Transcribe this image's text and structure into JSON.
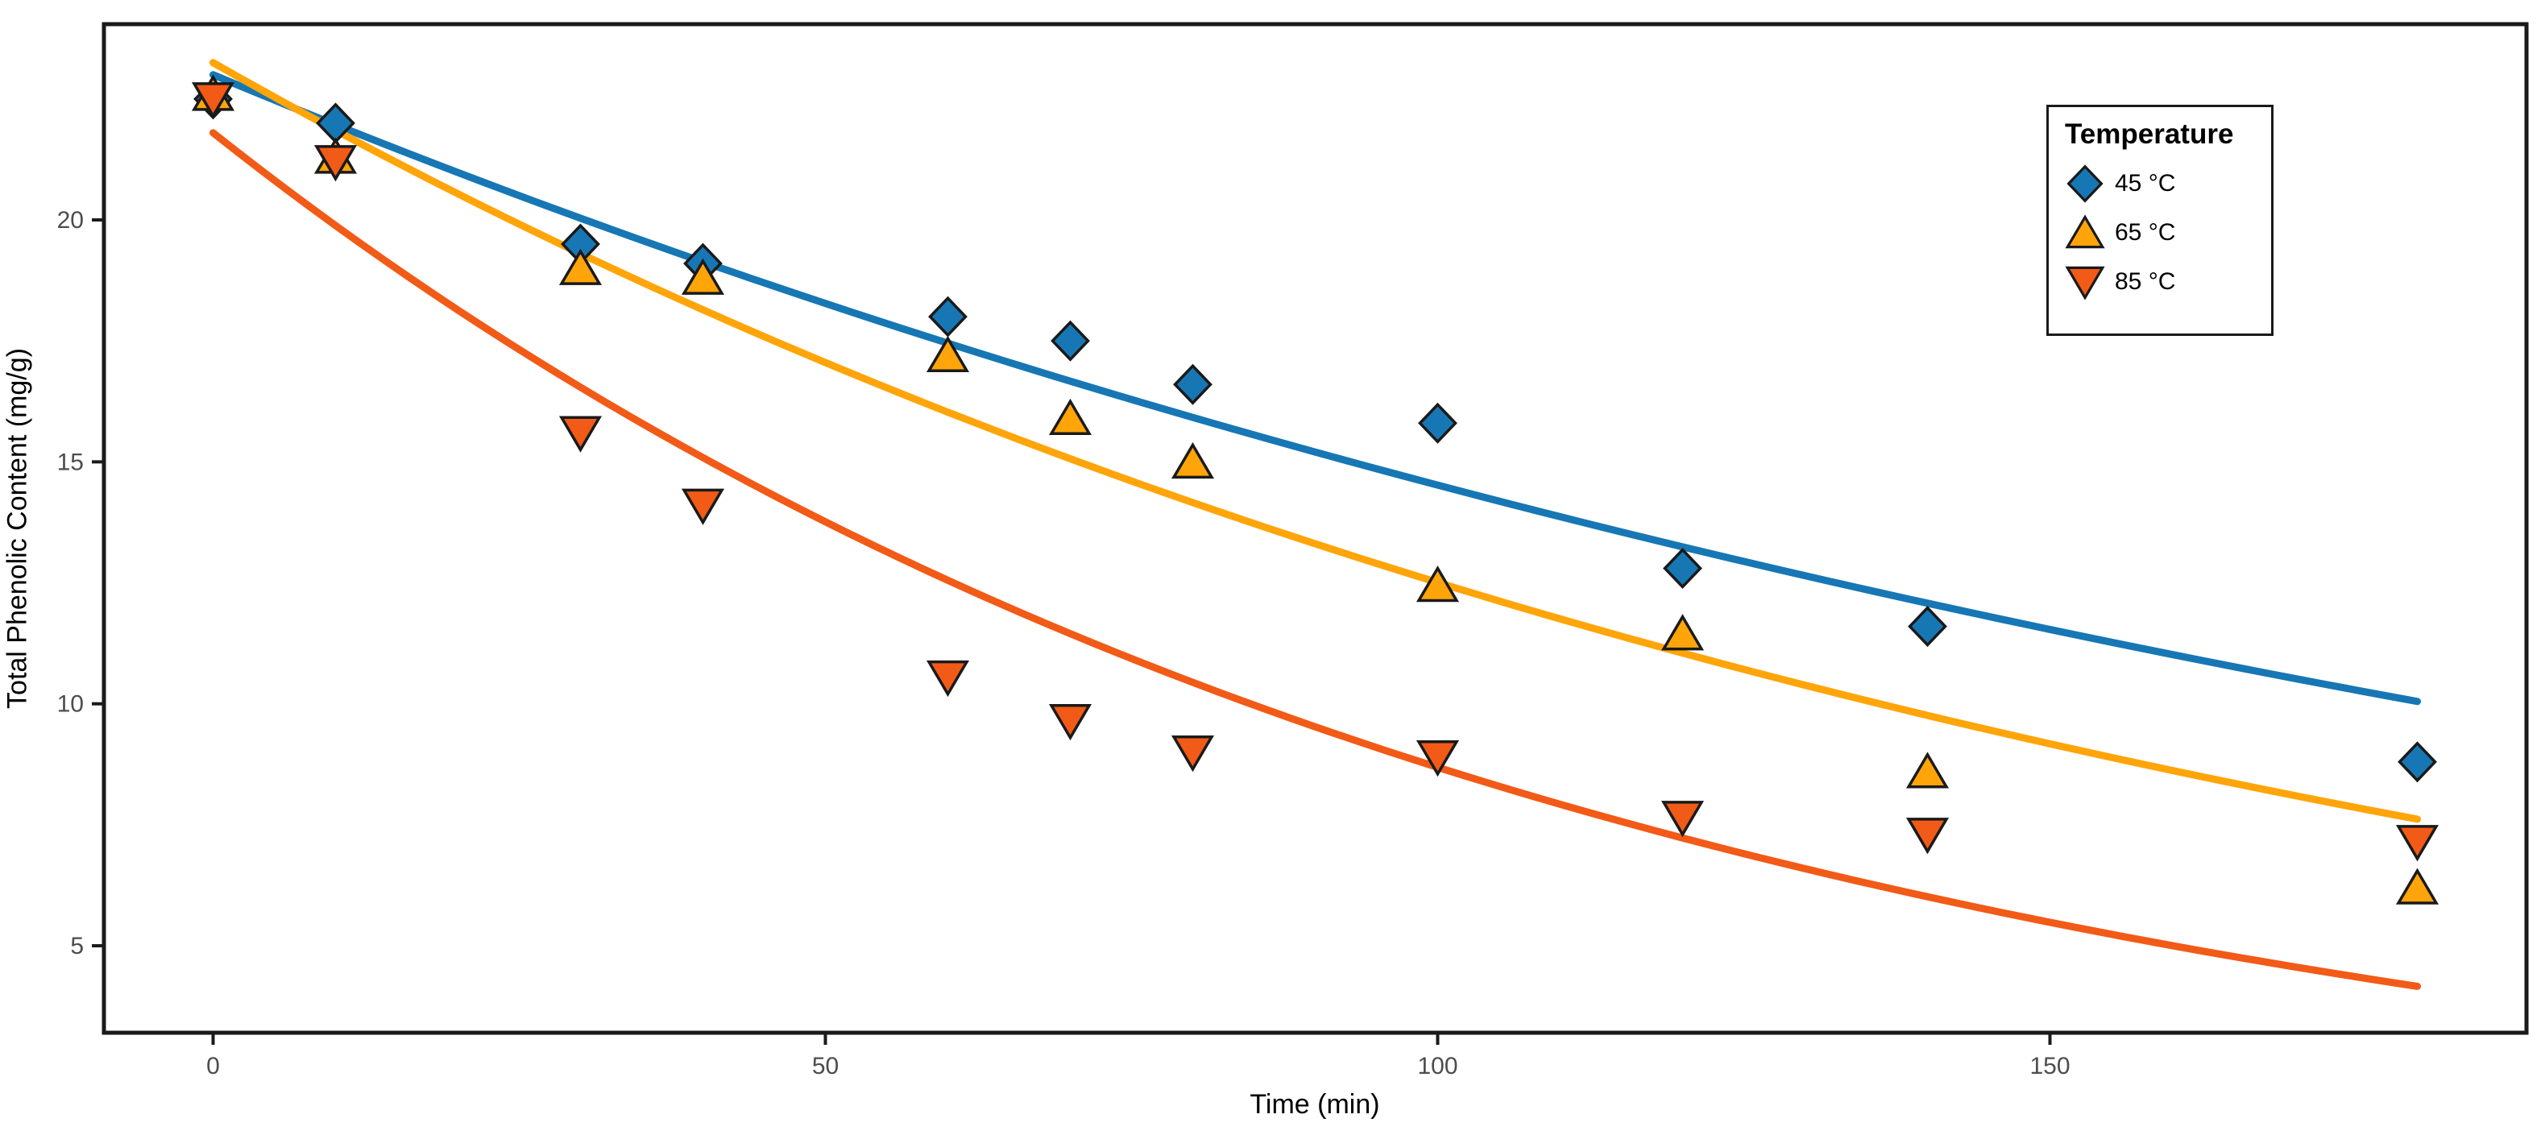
{
  "chart_data": {
    "type": "scatter",
    "title": "",
    "xlabel": "Time (min)",
    "ylabel": "Total Phenolic Content (mg/g)",
    "x_ticks": [
      0,
      50,
      100,
      150
    ],
    "y_ticks": [
      5,
      10,
      15,
      20
    ],
    "xlim": [
      -9,
      189
    ],
    "ylim": [
      3.2,
      24.1
    ],
    "grid": false,
    "axis_color": "#1A1A1A",
    "tick_label_color": "#4D4D4D",
    "legend": {
      "title": "Temperature",
      "position": "inside-top-right"
    },
    "series": [
      {
        "name": "45 °C",
        "marker": "diamond",
        "color": "#1777B4",
        "fit": {
          "model": "first-order-decay",
          "C0": 23.0,
          "k": 0.0046
        },
        "points": [
          [
            0,
            22.5
          ],
          [
            10,
            22.0
          ],
          [
            30,
            19.5
          ],
          [
            40,
            19.1
          ],
          [
            60,
            18.0
          ],
          [
            70,
            17.5
          ],
          [
            80,
            16.6
          ],
          [
            100,
            15.8
          ],
          [
            120,
            12.8
          ],
          [
            140,
            11.6
          ],
          [
            180,
            8.8
          ]
        ]
      },
      {
        "name": "65 °C",
        "marker": "triangle-up",
        "color": "#FFA50A",
        "fit": {
          "model": "first-order-decay",
          "C0": 23.25,
          "k": 0.0062
        },
        "points": [
          [
            0,
            22.6
          ],
          [
            10,
            21.3
          ],
          [
            30,
            19.0
          ],
          [
            40,
            18.8
          ],
          [
            60,
            17.2
          ],
          [
            70,
            15.9
          ],
          [
            80,
            15.0
          ],
          [
            100,
            12.45
          ],
          [
            120,
            11.45
          ],
          [
            140,
            8.6
          ],
          [
            180,
            6.2
          ]
        ]
      },
      {
        "name": "85 °C",
        "marker": "triangle-down",
        "color": "#F25A17",
        "fit": {
          "model": "first-order-decay",
          "C0": 21.8,
          "k": 0.0092
        },
        "points": [
          [
            0,
            22.5
          ],
          [
            10,
            21.2
          ],
          [
            30,
            15.6
          ],
          [
            40,
            14.1
          ],
          [
            60,
            10.55
          ],
          [
            70,
            9.65
          ],
          [
            80,
            9.0
          ],
          [
            100,
            8.9
          ],
          [
            120,
            7.65
          ],
          [
            140,
            7.3
          ],
          [
            180,
            7.15
          ]
        ]
      }
    ]
  }
}
